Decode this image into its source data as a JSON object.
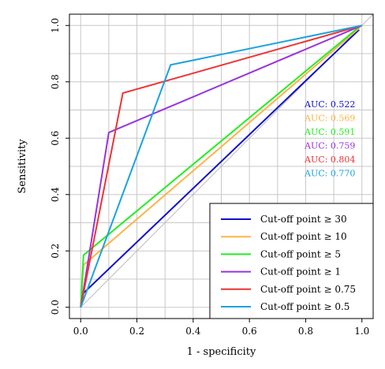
{
  "chart_data": {
    "type": "line",
    "title": "",
    "xlabel": "1 - specificity",
    "ylabel": "Sensitivity",
    "xlim": [
      -0.04,
      1.04
    ],
    "ylim": [
      -0.04,
      1.04
    ],
    "x_ticks": [
      0.0,
      0.2,
      0.4,
      0.6,
      0.8,
      1.0
    ],
    "y_ticks": [
      0.0,
      0.2,
      0.4,
      0.6,
      0.8,
      1.0
    ],
    "x_tick_labels": [
      "0.0",
      "0.2",
      "0.4",
      "0.6",
      "0.8",
      "1.0"
    ],
    "y_tick_labels": [
      "0.0",
      "0.2",
      "0.4",
      "0.6",
      "0.8",
      "1.0"
    ],
    "grid": true,
    "legend_position": "bottom-right",
    "reference_line": {
      "x": [
        0,
        1
      ],
      "y": [
        0,
        1
      ],
      "color": "#bbbbbb"
    },
    "series": [
      {
        "name": "Cut-off point ≥ 30",
        "color": "#1010cc",
        "auc_label": "AUC: 0.522",
        "x": [
          0.0,
          0.01,
          0.99
        ],
        "y": [
          0.0,
          0.05,
          0.985
        ]
      },
      {
        "name": "Cut-off point ≥ 10",
        "color": "#ffb347",
        "auc_label": "AUC: 0.569",
        "x": [
          0.0,
          0.01,
          0.99
        ],
        "y": [
          0.0,
          0.15,
          0.99
        ]
      },
      {
        "name": "Cut-off point ≥ 5",
        "color": "#22ee22",
        "auc_label": "AUC: 0.591",
        "x": [
          0.0,
          0.01,
          0.99
        ],
        "y": [
          0.0,
          0.185,
          0.995
        ]
      },
      {
        "name": "Cut-off point ≥ 1",
        "color": "#9933dd",
        "auc_label": "AUC: 0.759",
        "x": [
          0.0,
          0.1,
          1.0
        ],
        "y": [
          0.0,
          0.62,
          1.0
        ]
      },
      {
        "name": "Cut-off point ≥ 0.75",
        "color": "#ee3333",
        "auc_label": "AUC: 0.804",
        "x": [
          0.0,
          0.15,
          1.0
        ],
        "y": [
          0.0,
          0.76,
          1.0
        ]
      },
      {
        "name": "Cut-off point ≥ 0.5",
        "color": "#1aa3dd",
        "auc_label": "AUC: 0.770",
        "x": [
          0.0,
          0.32,
          1.0
        ],
        "y": [
          0.0,
          0.86,
          1.0
        ]
      }
    ]
  }
}
